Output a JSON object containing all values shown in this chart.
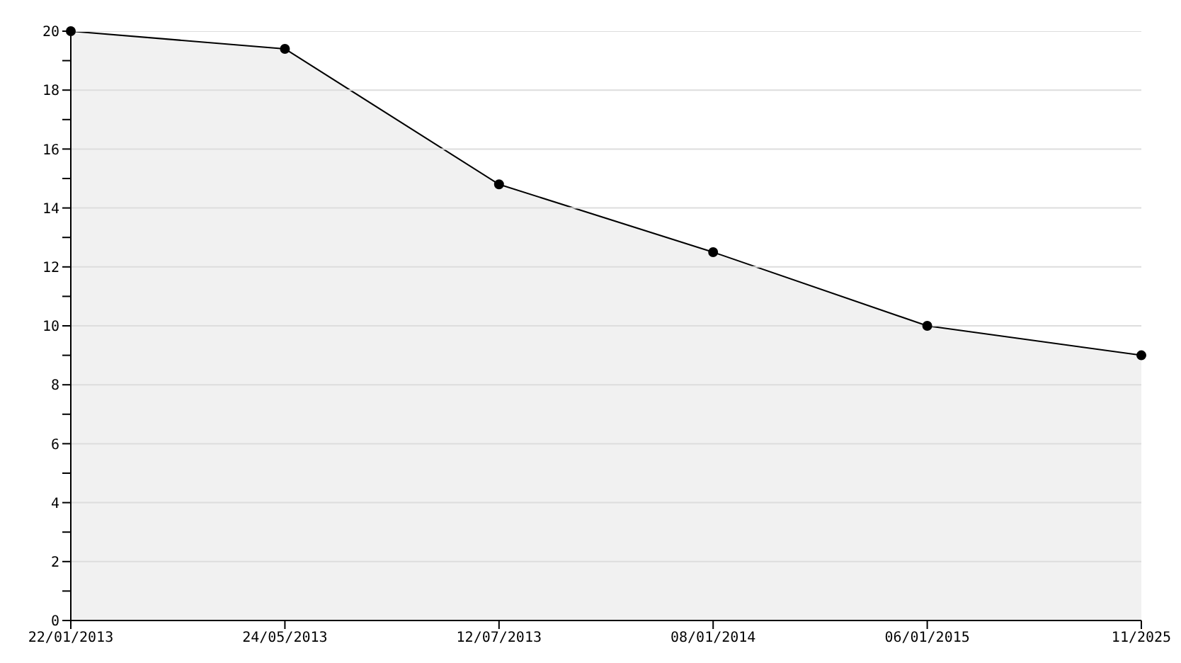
{
  "chart_data": {
    "type": "area",
    "categories": [
      "22/01/2013",
      "24/05/2013",
      "12/07/2013",
      "08/01/2014",
      "06/01/2015",
      "11/2025"
    ],
    "series": [
      {
        "color": "#000000",
        "values": [
          20,
          19.4,
          14.8,
          12.5,
          10,
          9
        ]
      }
    ],
    "ylim": [
      0,
      20
    ],
    "yticks": [
      0,
      {
        "value": 1,
        "label": null
      },
      2,
      {
        "value": 3,
        "label": null
      },
      4,
      {
        "value": 5,
        "label": null
      },
      6,
      {
        "value": 7,
        "label": null
      },
      8,
      {
        "value": 9,
        "label": null
      },
      10,
      {
        "value": 11,
        "label": null
      },
      12,
      {
        "value": 13,
        "label": null
      },
      14,
      {
        "value": 15,
        "label": null
      },
      16,
      {
        "value": 17,
        "label": null
      },
      18,
      {
        "value": 19,
        "label": null
      },
      20
    ],
    "grid": "y",
    "marker": "circle",
    "line_style": "solid"
  }
}
